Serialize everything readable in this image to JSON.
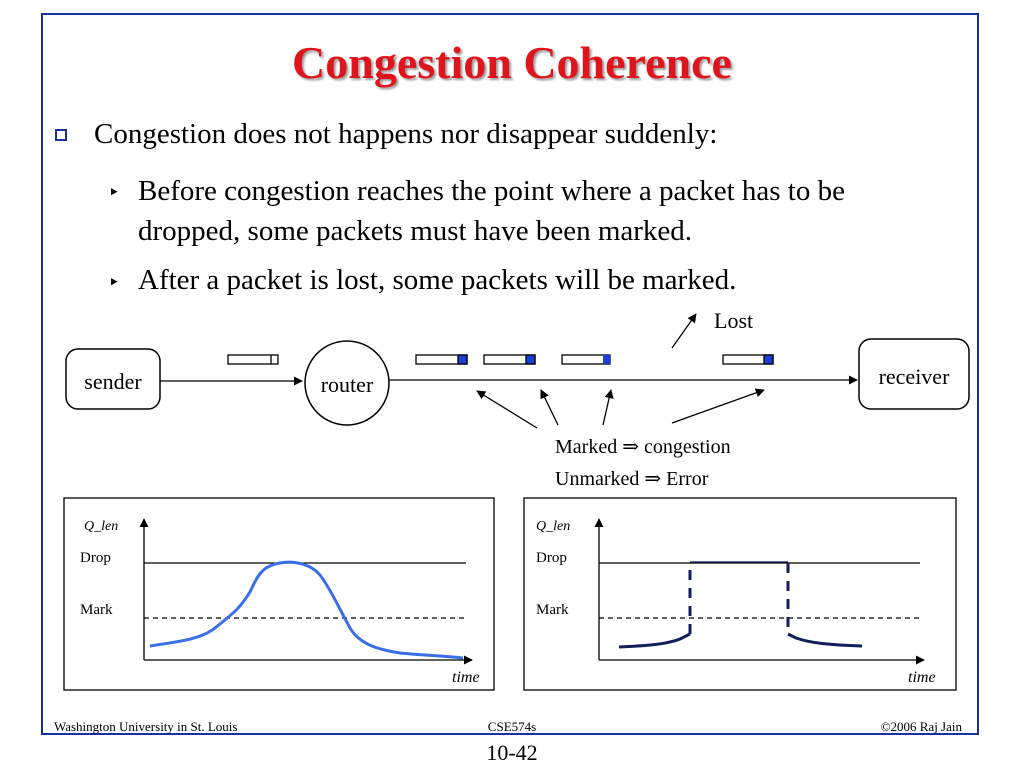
{
  "slide": {
    "title": "Congestion Coherence",
    "bullet_main": "Congestion does not happens nor disappear suddenly:",
    "sub1_line1": "Before congestion reaches the point where a packet has to be",
    "sub1_line2": "dropped, some packets must have been marked.",
    "sub2": "After a packet is lost, some packets will be marked."
  },
  "diagram": {
    "sender": "sender",
    "router": "router",
    "receiver": "receiver",
    "lost": "Lost",
    "marked_note": "Marked ⇒ congestion",
    "unmarked_note": "Unmarked ⇒ Error"
  },
  "charts": {
    "left": {
      "ylabel": "Q_len",
      "drop": "Drop",
      "mark": "Mark",
      "xlabel": "time"
    },
    "right": {
      "ylabel": "Q_len",
      "drop": "Drop",
      "mark": "Mark",
      "xlabel": "time"
    }
  },
  "footer": {
    "left": "Washington University in St. Louis",
    "center": "CSE574s",
    "right": "©2006 Raj Jain",
    "page": "10-42"
  },
  "colors": {
    "title": "#e0141c",
    "frame": "#1a2fa0",
    "mark_fill": "#1a3fd6",
    "curve_left": "#3a6ee8",
    "curve_right": "#0f1f5a"
  }
}
